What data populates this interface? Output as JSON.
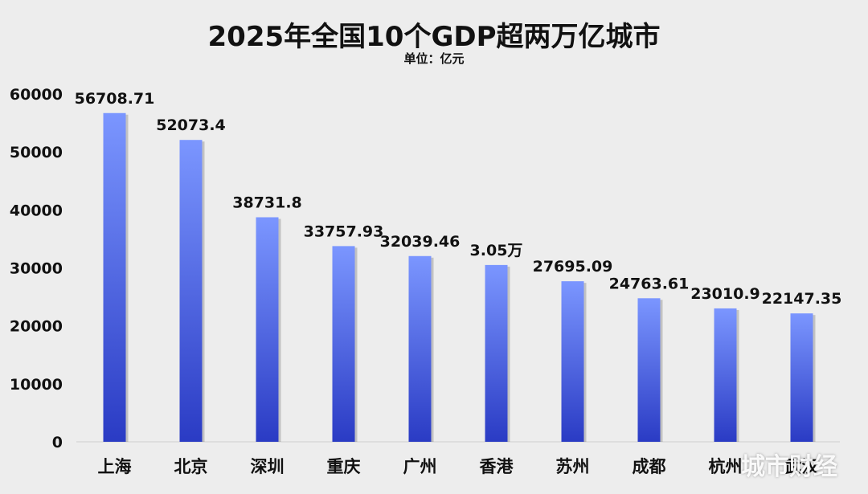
{
  "chart_data": {
    "type": "bar",
    "title": "2025年全国10个GDP超两万亿城市",
    "subtitle": "单位：亿元",
    "categories": [
      "上海",
      "北京",
      "深圳",
      "重庆",
      "广州",
      "香港",
      "苏州",
      "成都",
      "杭州",
      "武汉"
    ],
    "values": [
      56708.71,
      52073.4,
      38731.8,
      33757.93,
      32039.46,
      30500,
      27695.09,
      24763.61,
      23010.9,
      22147.35
    ],
    "data_labels": [
      "56708.71",
      "52073.4",
      "38731.8",
      "33757.93",
      "32039.46",
      "3.05万",
      "27695.09",
      "24763.61",
      "23010.9",
      "22147.35"
    ],
    "yticks": [
      "0",
      "10000",
      "20000",
      "30000",
      "40000",
      "50000",
      "60000"
    ],
    "ylim": [
      0,
      60000
    ],
    "grid": false,
    "legend": "none",
    "bar_color_top": "#7b96ff",
    "bar_color_bottom": "#2a3bc4"
  },
  "watermark": "城市财经"
}
